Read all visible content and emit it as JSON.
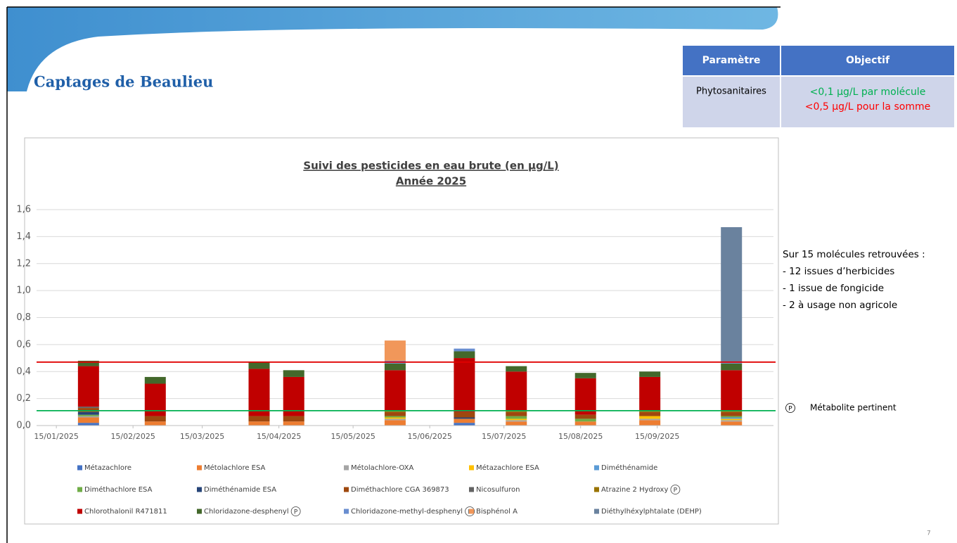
{
  "slide": {
    "title": "Captages de Beaulieu",
    "page_number": "7",
    "table": {
      "header": [
        "Paramètre",
        "Objectif"
      ],
      "rows": [
        {
          "parameter": "Phytosanitaires",
          "objectives": [
            {
              "text": "<0,1 µg/L par molécule",
              "color": "#00b050"
            },
            {
              "text": "<0,5 µg/L pour la somme",
              "color": "#ff0000"
            }
          ]
        }
      ]
    },
    "notes": {
      "heading": "Sur 15 molécules retrouvées :",
      "items": [
        "- 12 issues d’herbicides",
        "- 1 issue de fongicide",
        "- 2 à usage non agricole"
      ]
    },
    "metabolite_note": "Métabolite pertinent"
  },
  "chart_data": {
    "type": "stacked_bar",
    "title": "Suivi des pesticides en eau brute (en µg/L)",
    "subtitle": "Année 2025",
    "x": [
      "28/01/2025",
      "24/02/2025",
      "07/04/2025",
      "21/04/2025",
      "01/06/2025",
      "29/06/2025",
      "20/07/2025",
      "17/08/2025",
      "12/09/2025",
      "15/10/2025"
    ],
    "xlim": [
      "07/01/2025",
      "01/11/2025"
    ],
    "xticks": [
      "15/01/2025",
      "15/02/2025",
      "15/03/2025",
      "15/04/2025",
      "15/05/2025",
      "15/06/2025",
      "15/07/2025",
      "15/08/2025",
      "15/09/2025"
    ],
    "ylim": [
      0,
      1.6
    ],
    "yticks": [
      {
        "value": 0,
        "label": "0,0"
      },
      {
        "value": 0.2,
        "label": "0,2"
      },
      {
        "value": 0.4,
        "label": "0,4"
      },
      {
        "value": 0.6,
        "label": "0,6"
      },
      {
        "value": 0.8,
        "label": "0,8"
      },
      {
        "value": 1,
        "label": "1,0"
      },
      {
        "value": 1.2,
        "label": "1,2"
      },
      {
        "value": 1.4,
        "label": "1,4"
      },
      {
        "value": 1.6,
        "label": "1,6"
      }
    ],
    "grid": true,
    "reference_lines": [
      {
        "value": 0.47,
        "color": "#e00000"
      },
      {
        "value": 0.11,
        "color": "#00b050"
      }
    ],
    "series": [
      {
        "name": "Métazachlore",
        "color": "#4472c4",
        "values": [
          0.02,
          0,
          0,
          0,
          0,
          0.02,
          0,
          0,
          0,
          0
        ]
      },
      {
        "name": "Métolachlore ESA",
        "color": "#ed7d31",
        "values": [
          0.04,
          0.03,
          0.03,
          0.03,
          0.04,
          0.03,
          0.03,
          0.03,
          0.04,
          0.03
        ]
      },
      {
        "name": "Métolachlore-OXA",
        "color": "#a5a5a5",
        "values": [
          0.01,
          0,
          0,
          0,
          0.01,
          0,
          0.01,
          0,
          0.01,
          0.01
        ]
      },
      {
        "name": "Métazachlore ESA",
        "color": "#ffc000",
        "values": [
          0,
          0,
          0,
          0,
          0.01,
          0,
          0.01,
          0,
          0.02,
          0.01
        ]
      },
      {
        "name": "Diméthénamide",
        "color": "#5b9bd5",
        "values": [
          0,
          0,
          0,
          0,
          0,
          0,
          0,
          0,
          0,
          0.01
        ]
      },
      {
        "name": "Diméthachlore ESA",
        "color": "#70ad47",
        "values": [
          0.01,
          0,
          0,
          0,
          0.01,
          0,
          0.02,
          0.02,
          0,
          0.01
        ]
      },
      {
        "name": "Diméthénamide ESA",
        "color": "#264478",
        "values": [
          0.02,
          0,
          0,
          0,
          0,
          0.01,
          0,
          0,
          0,
          0
        ]
      },
      {
        "name": "Diméthachlore CGA 369873",
        "color": "#9e480e",
        "values": [
          0.03,
          0.04,
          0.04,
          0.04,
          0.03,
          0.04,
          0.03,
          0.03,
          0.03,
          0.03
        ]
      },
      {
        "name": "Nicosulfuron",
        "color": "#636363",
        "values": [
          0.01,
          0,
          0,
          0,
          0,
          0,
          0,
          0,
          0,
          0
        ]
      },
      {
        "name": "Atrazine 2 Hydroxy",
        "color": "#997300",
        "pertinent": true,
        "values": [
          0,
          0,
          0,
          0,
          0.01,
          0,
          0.01,
          0,
          0.01,
          0.01
        ]
      },
      {
        "name": "Chlorothalonil R471811",
        "color": "#c00000",
        "values": [
          0.3,
          0.24,
          0.35,
          0.29,
          0.3,
          0.4,
          0.29,
          0.27,
          0.25,
          0.3
        ]
      },
      {
        "name": "Chloridazone-desphenyl",
        "color": "#43682b",
        "pertinent": true,
        "values": [
          0.04,
          0.05,
          0.05,
          0.05,
          0.05,
          0.05,
          0.04,
          0.04,
          0.04,
          0.05
        ]
      },
      {
        "name": "Chloridazone-methyl-desphenyl",
        "color": "#698ed0",
        "pertinent": true,
        "values": [
          0,
          0,
          0,
          0,
          0.02,
          0.02,
          0,
          0,
          0,
          0.01
        ]
      },
      {
        "name": "Bisphénol A",
        "color": "#f1975a",
        "values": [
          0,
          0,
          0,
          0,
          0.15,
          0,
          0,
          0,
          0,
          0
        ]
      },
      {
        "name": "Diéthylhéxylphtalate (DEHP)",
        "color": "#6a829e",
        "values": [
          0,
          0,
          0,
          0,
          0,
          0,
          0,
          0,
          0,
          1.0
        ]
      }
    ]
  }
}
